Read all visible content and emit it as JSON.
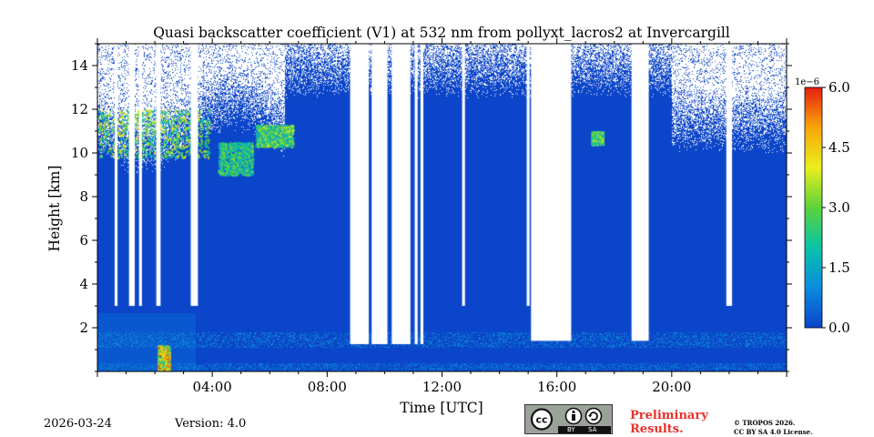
{
  "chart_data": {
    "type": "heatmap",
    "title": "Quasi backscatter coefficient (V1) at 532 nm from pollyxt_lacros2 at Invercargill",
    "xlabel": "Time [UTC]",
    "ylabel": "Height [km]",
    "xlim_hours": [
      0,
      24
    ],
    "ylim_km": [
      0,
      15
    ],
    "x_ticks": [
      {
        "hour": 4,
        "label": "04:00"
      },
      {
        "hour": 8,
        "label": "08:00"
      },
      {
        "hour": 12,
        "label": "12:00"
      },
      {
        "hour": 16,
        "label": "16:00"
      },
      {
        "hour": 20,
        "label": "20:00"
      }
    ],
    "y_ticks": [
      {
        "value": 2,
        "label": "2"
      },
      {
        "value": 4,
        "label": "4"
      },
      {
        "value": 6,
        "label": "6"
      },
      {
        "value": 8,
        "label": "8"
      },
      {
        "value": 10,
        "label": "10"
      },
      {
        "value": 12,
        "label": "12"
      },
      {
        "value": 14,
        "label": "14"
      }
    ],
    "colorbar": {
      "min": 0.0,
      "max": 6.0,
      "multiplier_label": "1e−6",
      "ticks": [
        {
          "value": 0.0,
          "label": "0.0"
        },
        {
          "value": 1.5,
          "label": "1.5"
        },
        {
          "value": 3.0,
          "label": "3.0"
        },
        {
          "value": 4.5,
          "label": "4.5"
        },
        {
          "value": 6.0,
          "label": "6.0"
        }
      ],
      "colors": [
        "#0b45c9",
        "#0a8ce0",
        "#08c4a8",
        "#5cd23a",
        "#e9ef1c",
        "#f9a50a",
        "#e51e10"
      ]
    },
    "gaps_no_data_hours": [
      [
        0.6,
        0.7
      ],
      [
        1.1,
        1.3
      ],
      [
        1.45,
        1.55
      ],
      [
        2.05,
        2.2
      ],
      [
        3.25,
        3.5
      ],
      [
        8.8,
        9.45
      ],
      [
        9.55,
        10.1
      ],
      [
        10.25,
        10.9
      ],
      [
        11.05,
        11.15
      ],
      [
        11.25,
        11.35
      ],
      [
        12.7,
        12.8
      ],
      [
        14.95,
        15.05
      ],
      [
        15.1,
        16.5
      ],
      [
        18.6,
        19.2
      ],
      [
        21.9,
        22.1
      ]
    ],
    "clouds": [
      {
        "t0": 0.0,
        "t1": 3.9,
        "h0": 9.8,
        "h1": 12.0,
        "level": 3.4
      },
      {
        "t0": 4.2,
        "t1": 5.4,
        "h0": 9.0,
        "h1": 10.5,
        "level": 2.6
      },
      {
        "t0": 5.5,
        "t1": 6.8,
        "h0": 10.3,
        "h1": 11.3,
        "level": 3.0
      },
      {
        "t0": 17.2,
        "t1": 17.6,
        "h0": 10.4,
        "h1": 11.0,
        "level": 3.2
      },
      {
        "t0": 2.1,
        "t1": 2.5,
        "h0": 0.0,
        "h1": 1.2,
        "level": 4.5
      }
    ],
    "boundary_layer": {
      "t0": 0.0,
      "t1": 3.4,
      "top_km": 2.7,
      "level": 0.8
    }
  },
  "footer": {
    "date": "2026-03-24",
    "version": "Version: 4.0",
    "preliminary": "Preliminary Results.",
    "copyright_line1": "© TROPOS 2026.",
    "copyright_line2": "CC BY SA 4.0 License.",
    "cc_by": "BY",
    "cc_sa": "SA"
  }
}
